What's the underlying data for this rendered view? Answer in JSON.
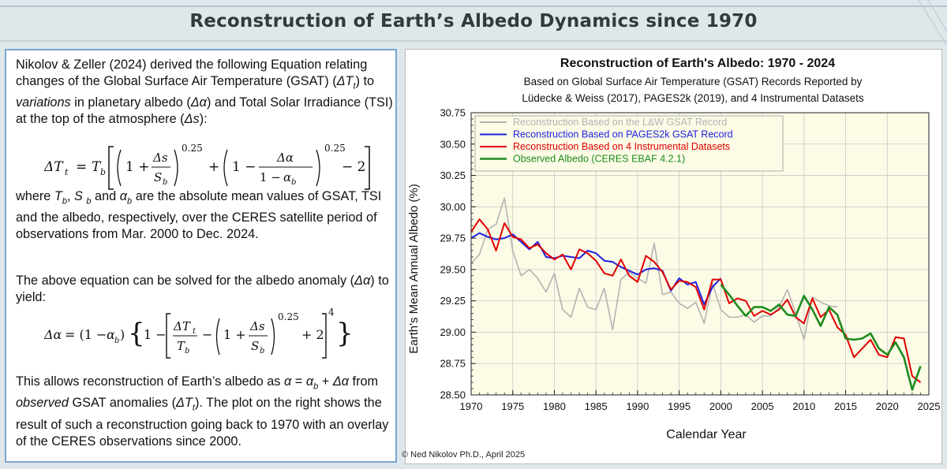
{
  "header": {
    "title": "Reconstruction of Earth’s Albedo Dynamics since 1970"
  },
  "left_panel": {
    "intro": "Nikolov & Zeller (2024) derived the following Equation relating changes of the Global Surface Air Temperature (GSAT) (ΔTt) to variations in planetary albedo (Δα) and Total Solar Irradiance (TSI) at the top of the atmosphere (Δs):",
    "equation1": "ΔTt = Tb [ (1 + Δs/Sb)^0.25 + (1 − Δα/(1 − αb))^0.25 − 2 ]",
    "where_text": "where Tb, S b and αb are the absolute mean values of GSAT, TSI and the albedo, respectively, over the CERES satellite period of observations from Mar. 2000 to Dec. 2024.",
    "solve_text": "The above equation can be solved for the albedo anomaly (Δα) to yield:",
    "equation2": "Δα = (1 − αb) { 1 − [ ΔTt/Tb − (1 + Δs/Sb)^0.25 + 2 ]^4 }",
    "conclusion": "This allows reconstruction of Earth’s albedo as α = αb + Δα from observed GSAT anomalies (ΔTt). The plot on the right shows the result of such a reconstruction going back to 1970 with an overlay of the CERES observations since 2000."
  },
  "credit": "© Ned Nikolov Ph.D., April 2025",
  "chart_data": {
    "type": "line",
    "title": "Reconstruction of Earth's Albedo: 1970 - 2024",
    "subtitle_lines": [
      "Based on Global Surface Air Temperature (GSAT) Records Reported by",
      "Lüdecke & Weiss (2017), PAGES2k (2019), and 4 Instrumental Datasets"
    ],
    "xlabel": "Calendar Year",
    "ylabel": "Earth's Mean Annual Albedo (%)",
    "xlim": [
      1970,
      2025
    ],
    "ylim": [
      28.5,
      30.75
    ],
    "xticks": [
      1970,
      1975,
      1980,
      1985,
      1990,
      1995,
      2000,
      2005,
      2010,
      2015,
      2020,
      2025
    ],
    "yticks": [
      "28.50",
      "28.75",
      "29.00",
      "29.25",
      "29.50",
      "29.75",
      "30.00",
      "30.25",
      "30.50",
      "30.75"
    ],
    "grid": true,
    "legend_position": "top-left",
    "plot_background": "#fbfbe6",
    "series": [
      {
        "name": "Reconstruction Based on the L&W GSAT Record",
        "color": "#b3b3b3",
        "x": [
          1970,
          1971,
          1972,
          1973,
          1974,
          1975,
          1976,
          1977,
          1978,
          1979,
          1980,
          1981,
          1982,
          1983,
          1984,
          1985,
          1986,
          1987,
          1988,
          1989,
          1990,
          1991,
          1992,
          1993,
          1994,
          1995,
          1996,
          1997,
          1998,
          1999,
          2000,
          2001,
          2002,
          2003,
          2004,
          2005,
          2006,
          2007,
          2008,
          2009,
          2010,
          2011,
          2012,
          2013,
          2014
        ],
        "y": [
          29.55,
          29.62,
          29.82,
          29.86,
          30.07,
          29.65,
          29.45,
          29.5,
          29.43,
          29.32,
          29.47,
          29.18,
          29.12,
          29.35,
          29.2,
          29.18,
          29.35,
          29.02,
          29.42,
          29.48,
          29.43,
          29.39,
          29.71,
          29.3,
          29.32,
          29.23,
          29.19,
          29.24,
          29.07,
          29.39,
          29.18,
          29.12,
          29.12,
          29.14,
          29.08,
          29.13,
          29.13,
          29.2,
          29.34,
          29.15,
          28.94,
          29.28,
          29.24,
          29.21,
          29.2
        ]
      },
      {
        "name": "Reconstruction Based on PAGES2k GSAT Record",
        "color": "#1f1fe0",
        "x": [
          1970,
          1971,
          1972,
          1973,
          1974,
          1975,
          1976,
          1977,
          1978,
          1979,
          1980,
          1981,
          1982,
          1983,
          1984,
          1985,
          1986,
          1987,
          1988,
          1989,
          1990,
          1991,
          1992,
          1993,
          1994,
          1995,
          1996,
          1997,
          1998,
          1999,
          2000
        ],
        "y": [
          29.75,
          29.79,
          29.76,
          29.74,
          29.75,
          29.78,
          29.72,
          29.66,
          29.72,
          29.6,
          29.59,
          29.61,
          29.6,
          29.59,
          29.65,
          29.63,
          29.57,
          29.56,
          29.52,
          29.49,
          29.46,
          29.5,
          29.51,
          29.49,
          29.33,
          29.43,
          29.38,
          29.4,
          29.22,
          29.36,
          29.43
        ]
      },
      {
        "name": "Reconstruction Based on 4 Instrumental Datasets",
        "color": "#e00000",
        "x": [
          1970,
          1971,
          1972,
          1973,
          1974,
          1975,
          1976,
          1977,
          1978,
          1979,
          1980,
          1981,
          1982,
          1983,
          1984,
          1985,
          1986,
          1987,
          1988,
          1989,
          1990,
          1991,
          1992,
          1993,
          1994,
          1995,
          1996,
          1997,
          1998,
          1999,
          2000,
          2001,
          2002,
          2003,
          2004,
          2005,
          2006,
          2007,
          2008,
          2009,
          2010,
          2011,
          2012,
          2013,
          2014,
          2015,
          2016,
          2017,
          2018,
          2019,
          2020,
          2021,
          2022,
          2023,
          2024
        ],
        "y": [
          29.8,
          29.9,
          29.82,
          29.65,
          29.87,
          29.76,
          29.74,
          29.67,
          29.7,
          29.63,
          29.58,
          29.62,
          29.5,
          29.66,
          29.63,
          29.57,
          29.47,
          29.45,
          29.58,
          29.45,
          29.4,
          29.61,
          29.56,
          29.48,
          29.34,
          29.41,
          29.4,
          29.36,
          29.18,
          29.42,
          29.42,
          29.23,
          29.27,
          29.25,
          29.13,
          29.17,
          29.14,
          29.18,
          29.26,
          29.12,
          29.07,
          29.27,
          29.12,
          29.18,
          29.04,
          28.98,
          28.8,
          28.87,
          28.94,
          28.82,
          28.8,
          28.96,
          28.95,
          28.65,
          28.6
        ]
      },
      {
        "name": "Observed Albedo (CERES EBAF 4.2.1)",
        "color": "#1f8c1f",
        "x": [
          2000,
          2001,
          2002,
          2003,
          2004,
          2005,
          2006,
          2007,
          2008,
          2009,
          2010,
          2011,
          2012,
          2013,
          2014,
          2015,
          2016,
          2017,
          2018,
          2019,
          2020,
          2021,
          2022,
          2023,
          2024
        ],
        "y": [
          29.38,
          29.3,
          29.21,
          29.13,
          29.2,
          29.2,
          29.17,
          29.22,
          29.14,
          29.13,
          29.29,
          29.18,
          29.05,
          29.2,
          29.14,
          28.95,
          28.94,
          28.95,
          28.99,
          28.87,
          28.82,
          28.92,
          28.8,
          28.54,
          28.73
        ]
      }
    ]
  }
}
